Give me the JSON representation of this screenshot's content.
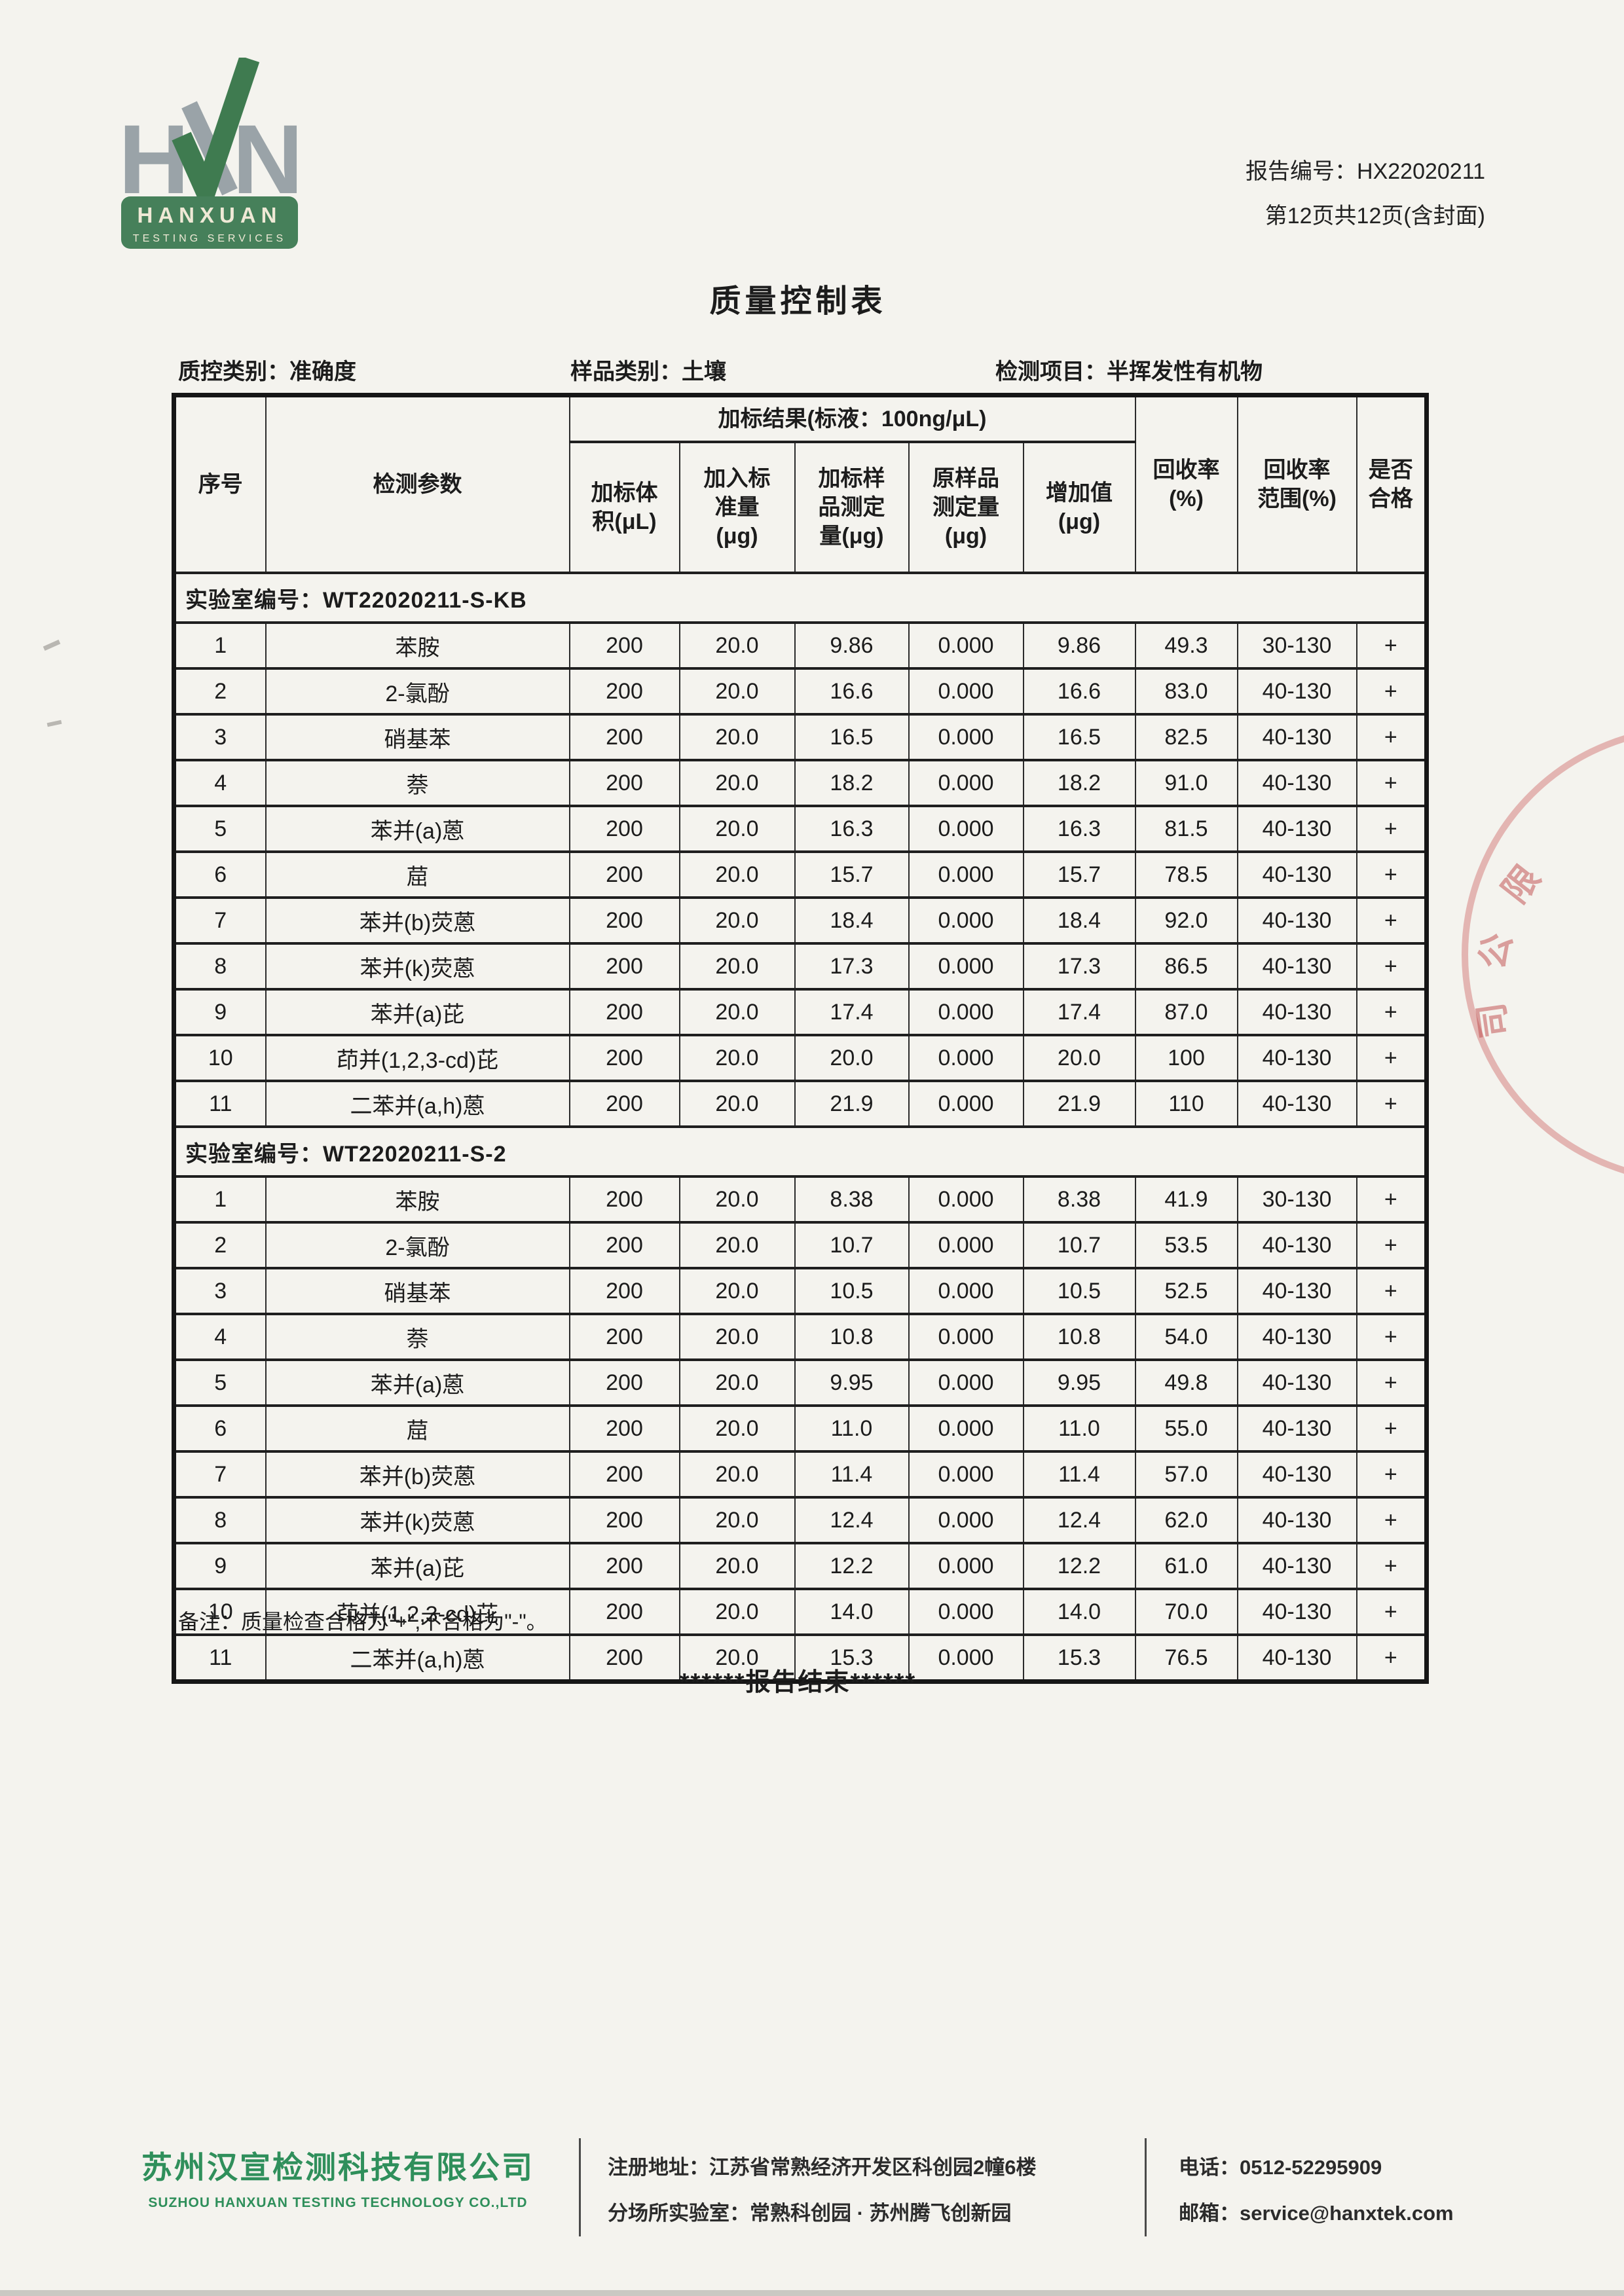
{
  "logo": {
    "letter_h": "H",
    "letter_n": "N",
    "name": "HANXUAN",
    "tagline": "TESTING SERVICES",
    "colors": {
      "gray": "#9aa3a8",
      "green": "#3f7b50",
      "rect_green": "#46805a",
      "cream": "#efe9d6"
    }
  },
  "header": {
    "report_no": "报告编号：HX22020211",
    "page_info": "第12页共12页(含封面)"
  },
  "title": "质量控制表",
  "meta": {
    "qc_type": "质控类别：准确度",
    "sample_type": "样品类别：土壤",
    "test_item": "检测项目：半挥发性有机物"
  },
  "table": {
    "header": {
      "col_seq": "序号",
      "col_param": "检测参数",
      "group_header": "加标结果(标液：100ng/μL)",
      "sub_cols": [
        "加标体\n积(μL)",
        "加入标\n准量\n(μg)",
        "加标样\n品测定\n量(μg)",
        "原样品\n测定量\n(μg)",
        "增加值\n(μg)"
      ],
      "col_recovery": "回收率\n(%)",
      "col_recovery_range": "回收率\n范围(%)",
      "col_pass": "是否\n合格"
    },
    "sections": [
      {
        "lab_id": "实验室编号：WT22020211-S-KB",
        "rows": [
          [
            "1",
            "苯胺",
            "200",
            "20.0",
            "9.86",
            "0.000",
            "9.86",
            "49.3",
            "30-130",
            "+"
          ],
          [
            "2",
            "2-氯酚",
            "200",
            "20.0",
            "16.6",
            "0.000",
            "16.6",
            "83.0",
            "40-130",
            "+"
          ],
          [
            "3",
            "硝基苯",
            "200",
            "20.0",
            "16.5",
            "0.000",
            "16.5",
            "82.5",
            "40-130",
            "+"
          ],
          [
            "4",
            "萘",
            "200",
            "20.0",
            "18.2",
            "0.000",
            "18.2",
            "91.0",
            "40-130",
            "+"
          ],
          [
            "5",
            "苯并(a)蒽",
            "200",
            "20.0",
            "16.3",
            "0.000",
            "16.3",
            "81.5",
            "40-130",
            "+"
          ],
          [
            "6",
            "䓛",
            "200",
            "20.0",
            "15.7",
            "0.000",
            "15.7",
            "78.5",
            "40-130",
            "+"
          ],
          [
            "7",
            "苯并(b)荧蒽",
            "200",
            "20.0",
            "18.4",
            "0.000",
            "18.4",
            "92.0",
            "40-130",
            "+"
          ],
          [
            "8",
            "苯并(k)荧蒽",
            "200",
            "20.0",
            "17.3",
            "0.000",
            "17.3",
            "86.5",
            "40-130",
            "+"
          ],
          [
            "9",
            "苯并(a)芘",
            "200",
            "20.0",
            "17.4",
            "0.000",
            "17.4",
            "87.0",
            "40-130",
            "+"
          ],
          [
            "10",
            "茚并(1,2,3-cd)芘",
            "200",
            "20.0",
            "20.0",
            "0.000",
            "20.0",
            "100",
            "40-130",
            "+"
          ],
          [
            "11",
            "二苯并(a,h)蒽",
            "200",
            "20.0",
            "21.9",
            "0.000",
            "21.9",
            "110",
            "40-130",
            "+"
          ]
        ]
      },
      {
        "lab_id": "实验室编号：WT22020211-S-2",
        "rows": [
          [
            "1",
            "苯胺",
            "200",
            "20.0",
            "8.38",
            "0.000",
            "8.38",
            "41.9",
            "30-130",
            "+"
          ],
          [
            "2",
            "2-氯酚",
            "200",
            "20.0",
            "10.7",
            "0.000",
            "10.7",
            "53.5",
            "40-130",
            "+"
          ],
          [
            "3",
            "硝基苯",
            "200",
            "20.0",
            "10.5",
            "0.000",
            "10.5",
            "52.5",
            "40-130",
            "+"
          ],
          [
            "4",
            "萘",
            "200",
            "20.0",
            "10.8",
            "0.000",
            "10.8",
            "54.0",
            "40-130",
            "+"
          ],
          [
            "5",
            "苯并(a)蒽",
            "200",
            "20.0",
            "9.95",
            "0.000",
            "9.95",
            "49.8",
            "40-130",
            "+"
          ],
          [
            "6",
            "䓛",
            "200",
            "20.0",
            "11.0",
            "0.000",
            "11.0",
            "55.0",
            "40-130",
            "+"
          ],
          [
            "7",
            "苯并(b)荧蒽",
            "200",
            "20.0",
            "11.4",
            "0.000",
            "11.4",
            "57.0",
            "40-130",
            "+"
          ],
          [
            "8",
            "苯并(k)荧蒽",
            "200",
            "20.0",
            "12.4",
            "0.000",
            "12.4",
            "62.0",
            "40-130",
            "+"
          ],
          [
            "9",
            "苯并(a)芘",
            "200",
            "20.0",
            "12.2",
            "0.000",
            "12.2",
            "61.0",
            "40-130",
            "+"
          ],
          [
            "10",
            "茚并(1,2,3-cd)芘",
            "200",
            "20.0",
            "14.0",
            "0.000",
            "14.0",
            "70.0",
            "40-130",
            "+"
          ],
          [
            "11",
            "二苯并(a,h)蒽",
            "200",
            "20.0",
            "15.3",
            "0.000",
            "15.3",
            "76.5",
            "40-130",
            "+"
          ]
        ]
      }
    ]
  },
  "note": "备注：质量检查合格为\"+\",不合格为\"-\"。",
  "end_line": "******报告结束******",
  "stamp": {
    "chars": [
      "限",
      "公",
      "司"
    ]
  },
  "footer": {
    "company_cn": "苏州汉宣检测科技有限公司",
    "company_en": "SUZHOU HANXUAN TESTING TECHNOLOGY CO.,LTD",
    "address_line1": "注册地址：江苏省常熟经济开发区科创园2幢6楼",
    "address_line2": "分场所实验室：常熟科创园 · 苏州腾飞创新园",
    "phone": "电话：0512-52295909",
    "email": "邮箱：service@hanxtek.com"
  }
}
